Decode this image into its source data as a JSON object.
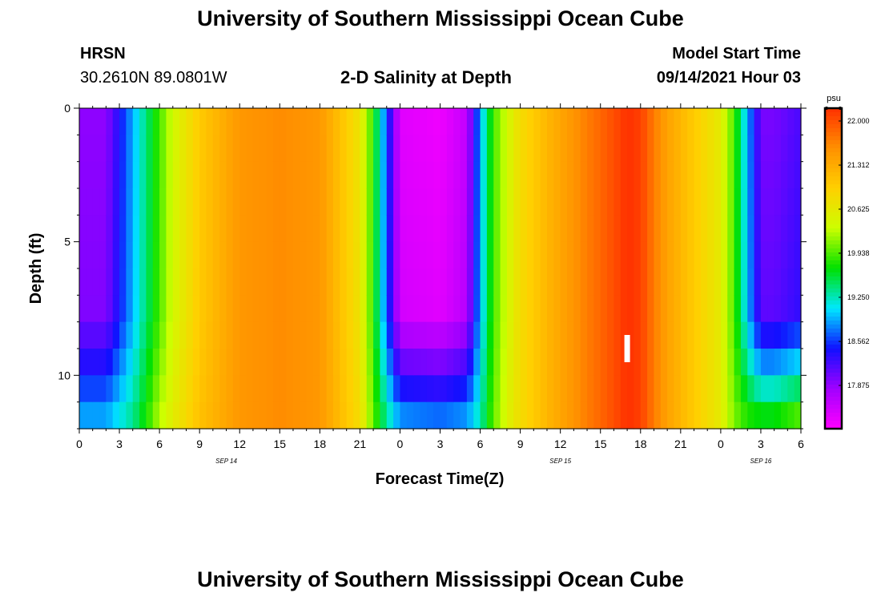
{
  "titles": {
    "top": "University of Southern Mississippi Ocean Cube",
    "bottom": "University of Southern Mississippi Ocean Cube"
  },
  "header": {
    "station": "HRSN",
    "coords": "30.2610N  89.0801W",
    "plot_title": "2-D Salinity at Depth",
    "model_label": "Model Start Time",
    "model_time": "09/14/2021 Hour 03"
  },
  "colors": {
    "ramp": [
      "#ff00ff",
      "#a000ff",
      "#1010ff",
      "#00e8ff",
      "#00e000",
      "#ccff00",
      "#ffd000",
      "#ff9000",
      "#ff3000"
    ]
  },
  "chart_data": {
    "type": "heatmap",
    "title": "2-D Salinity at Depth",
    "xlabel": "Forecast Time(Z)",
    "ylabel": "Depth (ft)",
    "x_ticks": [
      "0",
      "3",
      "6",
      "9",
      "12",
      "15",
      "18",
      "21",
      "0",
      "3",
      "6",
      "9",
      "12",
      "15",
      "18",
      "21",
      "0",
      "3",
      "6"
    ],
    "x_range_hours": [
      0,
      54
    ],
    "x_tick_step_hours": 3,
    "date_labels": [
      {
        "text": "SEP 14",
        "hour": 11
      },
      {
        "text": "SEP 15",
        "hour": 36
      },
      {
        "text": "SEP 16",
        "hour": 51
      }
    ],
    "y_ticks": [
      "0",
      "5",
      "10"
    ],
    "y_range_ft": [
      0,
      12
    ],
    "y_tick_values": [
      0,
      5,
      10
    ],
    "colorbar": {
      "unit": "psu",
      "range": [
        17.2,
        22.2
      ],
      "tick_values": [
        22.0,
        21.312,
        20.625,
        19.938,
        19.25,
        18.562,
        17.875
      ],
      "tick_labels": [
        "22.000",
        "21.312",
        "20.625",
        "19.938",
        "19.250",
        "18.562",
        "17.875"
      ]
    },
    "time_hours": [
      0,
      2,
      4,
      5,
      6,
      7,
      9,
      12,
      15,
      18,
      21,
      22,
      23,
      24,
      27,
      29,
      30,
      31,
      32,
      33,
      35,
      38,
      40,
      41,
      42,
      43,
      44,
      48,
      49,
      50,
      51,
      52,
      54
    ],
    "surface_salinity_psu": [
      17.9,
      17.9,
      18.9,
      19.4,
      19.9,
      20.4,
      21.0,
      21.5,
      21.6,
      21.5,
      20.7,
      19.8,
      18.6,
      17.4,
      17.3,
      17.6,
      18.9,
      19.9,
      20.4,
      20.8,
      21.2,
      21.7,
      22.0,
      22.2,
      22.1,
      21.7,
      21.4,
      20.6,
      19.9,
      18.9,
      18.0,
      18.0,
      18.2
    ],
    "bottom_salinity_psu": [
      19.0,
      19.0,
      19.4,
      19.8,
      20.3,
      20.6,
      21.1,
      21.5,
      21.6,
      21.5,
      20.8,
      20.0,
      19.4,
      19.0,
      18.9,
      19.0,
      19.3,
      20.0,
      20.5,
      20.8,
      21.2,
      21.7,
      22.0,
      22.2,
      22.1,
      21.7,
      21.4,
      20.6,
      20.1,
      19.9,
      19.9,
      19.9,
      20.2
    ],
    "stratified_below_ft": 7.5,
    "annotations": [
      {
        "type": "white-marker",
        "hour": 41,
        "depth_ft": 9
      }
    ]
  }
}
